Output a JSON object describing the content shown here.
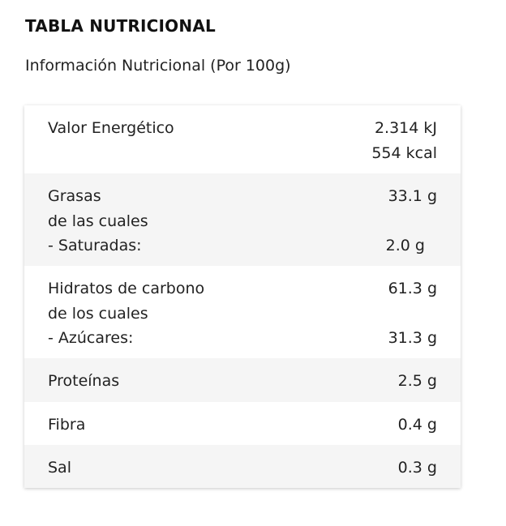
{
  "header": {
    "title": "TABLA NUTRICIONAL",
    "subtitle": "Información Nutricional (Por 100g)"
  },
  "rows": [
    {
      "label_lines": [
        "Valor Energético"
      ],
      "value_lines": [
        "2.314 kJ",
        "554 kcal"
      ]
    },
    {
      "label_lines": [
        "Grasas",
        "de las cuales",
        "- Saturadas:"
      ],
      "value_lines": [
        "33.1 g",
        "",
        "2.0 g"
      ]
    },
    {
      "label_lines": [
        "Hidratos de carbono",
        "de los cuales",
        "- Azúcares:"
      ],
      "value_lines": [
        "61.3 g",
        "",
        "31.3 g"
      ]
    },
    {
      "label_lines": [
        "Proteínas"
      ],
      "value_lines": [
        "2.5 g"
      ]
    },
    {
      "label_lines": [
        "Fibra"
      ],
      "value_lines": [
        "0.4 g"
      ]
    },
    {
      "label_lines": [
        "Sal"
      ],
      "value_lines": [
        "0.3 g"
      ]
    }
  ]
}
